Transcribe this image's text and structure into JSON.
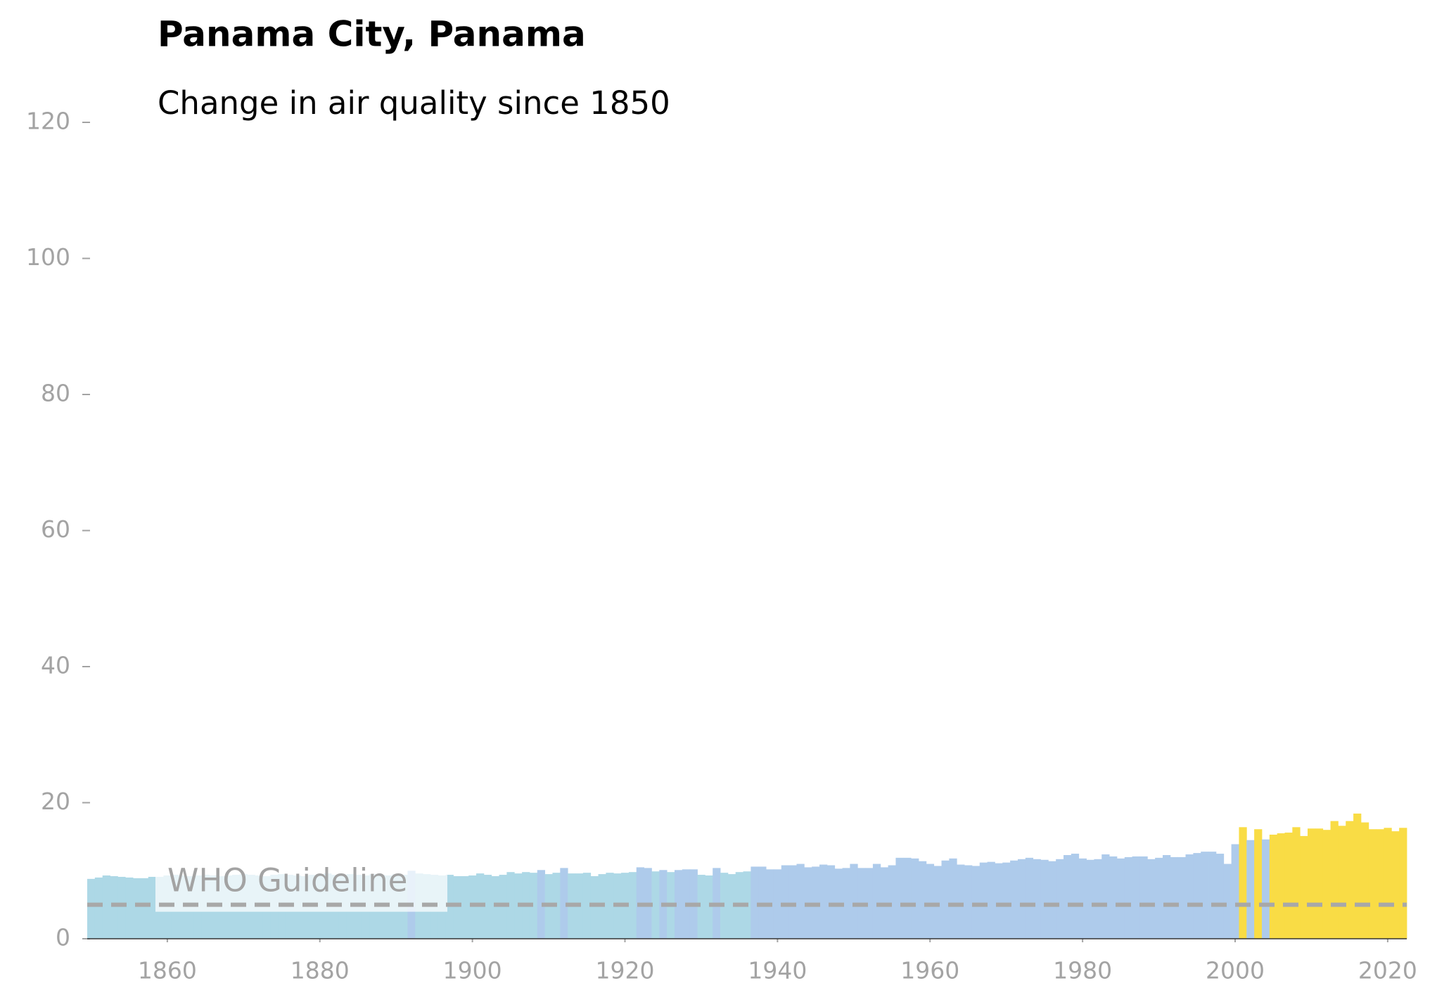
{
  "chart_data": {
    "type": "bar",
    "title": "Panama City, Panama",
    "subtitle": "Change in air quality since 1850",
    "guideline": {
      "value": 5,
      "label": "WHO Guideline"
    },
    "x": [
      1850,
      1851,
      1852,
      1853,
      1854,
      1855,
      1856,
      1857,
      1858,
      1859,
      1860,
      1861,
      1862,
      1863,
      1864,
      1865,
      1866,
      1867,
      1868,
      1869,
      1870,
      1871,
      1872,
      1873,
      1874,
      1875,
      1876,
      1877,
      1878,
      1879,
      1880,
      1881,
      1882,
      1883,
      1884,
      1885,
      1886,
      1887,
      1888,
      1889,
      1890,
      1891,
      1892,
      1893,
      1894,
      1895,
      1896,
      1897,
      1898,
      1899,
      1900,
      1901,
      1902,
      1903,
      1904,
      1905,
      1906,
      1907,
      1908,
      1909,
      1910,
      1911,
      1912,
      1913,
      1914,
      1915,
      1916,
      1917,
      1918,
      1919,
      1920,
      1921,
      1922,
      1923,
      1924,
      1925,
      1926,
      1927,
      1928,
      1929,
      1930,
      1931,
      1932,
      1933,
      1934,
      1935,
      1936,
      1937,
      1938,
      1939,
      1940,
      1941,
      1942,
      1943,
      1944,
      1945,
      1946,
      1947,
      1948,
      1949,
      1950,
      1951,
      1952,
      1953,
      1954,
      1955,
      1956,
      1957,
      1958,
      1959,
      1960,
      1961,
      1962,
      1963,
      1964,
      1965,
      1966,
      1967,
      1968,
      1969,
      1970,
      1971,
      1972,
      1973,
      1974,
      1975,
      1976,
      1977,
      1978,
      1979,
      1980,
      1981,
      1982,
      1983,
      1984,
      1985,
      1986,
      1987,
      1988,
      1989,
      1990,
      1991,
      1992,
      1993,
      1994,
      1995,
      1996,
      1997,
      1998,
      1999,
      2000,
      2001,
      2002,
      2003,
      2004,
      2005,
      2006,
      2007,
      2008,
      2009,
      2010,
      2011,
      2012,
      2013,
      2014,
      2015,
      2016,
      2017,
      2018,
      2019,
      2020,
      2021,
      2022
    ],
    "values": [
      8.8,
      9.0,
      9.3,
      9.2,
      9.1,
      9.0,
      8.9,
      8.9,
      9.1,
      9.1,
      9.3,
      9.4,
      9.3,
      9.2,
      9.3,
      9.4,
      9.3,
      9.2,
      9.3,
      9.4,
      9.5,
      9.4,
      9.3,
      9.2,
      9.4,
      9.5,
      9.4,
      9.3,
      9.2,
      9.4,
      9.5,
      9.6,
      9.4,
      9.3,
      9.5,
      9.4,
      9.3,
      9.5,
      9.4,
      9.3,
      9.5,
      9.4,
      10.0,
      9.6,
      9.5,
      9.4,
      9.3,
      9.4,
      9.2,
      9.2,
      9.3,
      9.6,
      9.4,
      9.2,
      9.4,
      9.8,
      9.6,
      9.8,
      9.7,
      10.1,
      9.5,
      9.7,
      10.4,
      9.6,
      9.6,
      9.7,
      9.2,
      9.5,
      9.7,
      9.6,
      9.7,
      9.8,
      10.5,
      10.4,
      9.9,
      10.1,
      9.8,
      10.1,
      10.2,
      10.2,
      9.4,
      9.3,
      10.4,
      9.7,
      9.5,
      9.8,
      9.9,
      10.6,
      10.6,
      10.2,
      10.2,
      10.8,
      10.8,
      11.0,
      10.5,
      10.6,
      10.9,
      10.8,
      10.3,
      10.4,
      11.0,
      10.4,
      10.4,
      11.0,
      10.5,
      10.8,
      11.9,
      11.9,
      11.8,
      11.4,
      11.0,
      10.7,
      11.5,
      11.8,
      10.9,
      10.8,
      10.7,
      11.2,
      11.3,
      11.1,
      11.2,
      11.5,
      11.7,
      11.9,
      11.7,
      11.6,
      11.4,
      11.7,
      12.3,
      12.5,
      11.8,
      11.6,
      11.7,
      12.4,
      12.1,
      11.8,
      12.0,
      12.1,
      12.1,
      11.7,
      11.9,
      12.3,
      12.0,
      12.0,
      12.4,
      12.6,
      12.8,
      12.8,
      12.5,
      11.0,
      13.9,
      16.4,
      14.5,
      16.1,
      14.6,
      15.3,
      15.5,
      15.6,
      16.4,
      15.1,
      16.2,
      16.2,
      16.0,
      17.3,
      16.6,
      17.3,
      18.4,
      17.1,
      16.1,
      16.1,
      16.3,
      15.8,
      16.3
    ],
    "colors": [
      "#add8e6",
      "#add8e6",
      "#add8e6",
      "#add8e6",
      "#add8e6",
      "#add8e6",
      "#add8e6",
      "#add8e6",
      "#add8e6",
      "#add8e6",
      "#add8e6",
      "#add8e6",
      "#add8e6",
      "#add8e6",
      "#add8e6",
      "#add8e6",
      "#add8e6",
      "#add8e6",
      "#add8e6",
      "#add8e6",
      "#add8e6",
      "#add8e6",
      "#add8e6",
      "#add8e6",
      "#add8e6",
      "#add8e6",
      "#add8e6",
      "#add8e6",
      "#add8e6",
      "#add8e6",
      "#add8e6",
      "#add8e6",
      "#add8e6",
      "#add8e6",
      "#add8e6",
      "#add8e6",
      "#add8e6",
      "#add8e6",
      "#add8e6",
      "#add8e6",
      "#add8e6",
      "#add8e6",
      "#aecbeb",
      "#add8e6",
      "#add8e6",
      "#add8e6",
      "#add8e6",
      "#add8e6",
      "#add8e6",
      "#add8e6",
      "#add8e6",
      "#add8e6",
      "#add8e6",
      "#add8e6",
      "#add8e6",
      "#add8e6",
      "#add8e6",
      "#add8e6",
      "#add8e6",
      "#aecbeb",
      "#add8e6",
      "#add8e6",
      "#aecbeb",
      "#add8e6",
      "#add8e6",
      "#add8e6",
      "#add8e6",
      "#add8e6",
      "#add8e6",
      "#add8e6",
      "#add8e6",
      "#add8e6",
      "#aecbeb",
      "#aecbeb",
      "#add8e6",
      "#aecbeb",
      "#add8e6",
      "#aecbeb",
      "#aecbeb",
      "#aecbeb",
      "#add8e6",
      "#add8e6",
      "#aecbeb",
      "#add8e6",
      "#add8e6",
      "#add8e6",
      "#add8e6",
      "#aecbeb",
      "#aecbeb",
      "#aecbeb",
      "#aecbeb",
      "#aecbeb",
      "#aecbeb",
      "#aecbeb",
      "#aecbeb",
      "#aecbeb",
      "#aecbeb",
      "#aecbeb",
      "#aecbeb",
      "#aecbeb",
      "#aecbeb",
      "#aecbeb",
      "#aecbeb",
      "#aecbeb",
      "#aecbeb",
      "#aecbeb",
      "#aecbeb",
      "#aecbeb",
      "#aecbeb",
      "#aecbeb",
      "#aecbeb",
      "#aecbeb",
      "#aecbeb",
      "#aecbeb",
      "#aecbeb",
      "#aecbeb",
      "#aecbeb",
      "#aecbeb",
      "#aecbeb",
      "#aecbeb",
      "#aecbeb",
      "#aecbeb",
      "#aecbeb",
      "#aecbeb",
      "#aecbeb",
      "#aecbeb",
      "#aecbeb",
      "#aecbeb",
      "#aecbeb",
      "#aecbeb",
      "#aecbeb",
      "#aecbeb",
      "#aecbeb",
      "#aecbeb",
      "#aecbeb",
      "#aecbeb",
      "#aecbeb",
      "#aecbeb",
      "#aecbeb",
      "#aecbeb",
      "#aecbeb",
      "#aecbeb",
      "#aecbeb",
      "#aecbeb",
      "#aecbeb",
      "#aecbeb",
      "#aecbeb",
      "#aecbeb",
      "#aecbeb",
      "#aecbeb",
      "#aecbeb",
      "#f9dc45",
      "#aecbeb",
      "#f9dc45",
      "#aecbeb",
      "#f9dc45",
      "#f9dc45",
      "#f9dc45",
      "#f9dc45",
      "#f9dc45",
      "#f9dc45",
      "#f9dc45",
      "#f9dc45",
      "#f9dc45",
      "#f9dc45",
      "#f9dc45",
      "#f9dc45",
      "#f9dc45",
      "#f9dc45",
      "#f9dc45",
      "#f9dc45",
      "#f9dc45",
      "#f9dc45"
    ],
    "xlim": [
      1849.5,
      2022.5
    ],
    "xticks": [
      1860,
      1880,
      1900,
      1920,
      1940,
      1960,
      1980,
      2000,
      2020
    ],
    "ylim": [
      0,
      120
    ],
    "yticks": [
      0,
      20,
      40,
      60,
      80,
      100,
      120
    ]
  }
}
